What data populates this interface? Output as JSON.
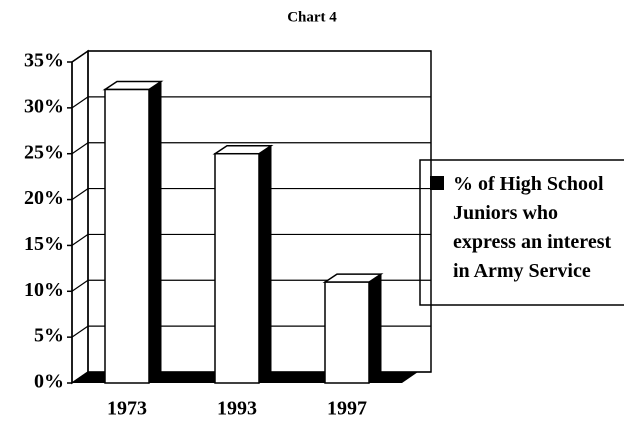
{
  "chart_data": {
    "type": "bar3d",
    "title": "Chart 4",
    "categories": [
      "1973",
      "1993",
      "1997"
    ],
    "series": [
      {
        "name": "% of High School Juniors who express an interest in Army Service",
        "color": "#ffffff",
        "values": [
          32,
          25,
          11
        ]
      }
    ],
    "ylim": [
      0,
      35
    ],
    "yticks": [
      {
        "value": 0,
        "label": "0%"
      },
      {
        "value": 5,
        "label": "5%"
      },
      {
        "value": 10,
        "label": "10%"
      },
      {
        "value": 15,
        "label": "15%"
      },
      {
        "value": 20,
        "label": "20%"
      },
      {
        "value": 25,
        "label": "25%"
      },
      {
        "value": 30,
        "label": "30%"
      },
      {
        "value": 35,
        "label": "35%"
      }
    ],
    "grid": true,
    "legend": "right"
  }
}
